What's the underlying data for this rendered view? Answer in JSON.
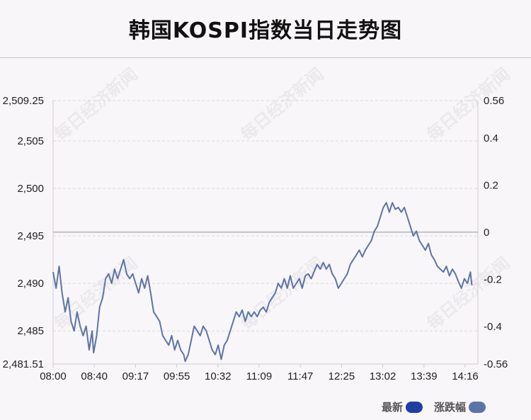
{
  "header": {
    "title": "韩国KOSPI指数当日走势图"
  },
  "watermark_text": "每日经济新闻",
  "legend": {
    "latest_label": "最新",
    "latest_color": "#1e3fa3",
    "change_label": "涨跌幅",
    "change_color": "#5b74a8"
  },
  "chart_data": {
    "type": "line",
    "title": "韩国KOSPI指数当日走势图",
    "x_tick_labels": [
      "08:00",
      "08:40",
      "09:17",
      "09:55",
      "10:32",
      "11:09",
      "11:47",
      "12:25",
      "13:02",
      "13:39",
      "14:16"
    ],
    "y_left_tick_labels": [
      "2,509.25",
      "2,505",
      "2,500",
      "2,495",
      "2,490",
      "2,485",
      "2,481.51"
    ],
    "y_left_tick_values": [
      2509.25,
      2505,
      2500,
      2495,
      2490,
      2485,
      2481.51
    ],
    "y_right_tick_labels": [
      "0.56",
      "0.4",
      "0.2",
      "0",
      "-0.2",
      "-0.4",
      "-0.56"
    ],
    "y_right_tick_values": [
      0.56,
      0.4,
      0.2,
      0,
      -0.2,
      -0.4,
      -0.56
    ],
    "ylim": [
      2481.51,
      2509.25
    ],
    "y2lim": [
      -0.56,
      0.56
    ],
    "baseline": 2495.4,
    "line_color": "#5b74a8",
    "grid": true,
    "series": [
      {
        "name": "最新",
        "points": [
          [
            0,
            2491.2
          ],
          [
            2,
            2489.5
          ],
          [
            4,
            2491.8
          ],
          [
            6,
            2489.0
          ],
          [
            8,
            2487.0
          ],
          [
            10,
            2488.5
          ],
          [
            12,
            2486.0
          ],
          [
            14,
            2485.0
          ],
          [
            16,
            2487.0
          ],
          [
            18,
            2485.5
          ],
          [
            20,
            2484.5
          ],
          [
            22,
            2485.5
          ],
          [
            24,
            2483.0
          ],
          [
            26,
            2485.0
          ],
          [
            27,
            2482.7
          ],
          [
            29,
            2484.5
          ],
          [
            31,
            2487.5
          ],
          [
            33,
            2488.5
          ],
          [
            35,
            2490.5
          ],
          [
            37,
            2491.0
          ],
          [
            39,
            2490.0
          ],
          [
            41,
            2491.5
          ],
          [
            43,
            2490.5
          ],
          [
            45,
            2491.5
          ],
          [
            47,
            2492.5
          ],
          [
            49,
            2491.0
          ],
          [
            51,
            2490.5
          ],
          [
            53,
            2491.0
          ],
          [
            55,
            2490.0
          ],
          [
            57,
            2489.0
          ],
          [
            59,
            2490.5
          ],
          [
            61,
            2489.5
          ],
          [
            63,
            2490.8
          ],
          [
            65,
            2489.0
          ],
          [
            67,
            2487.0
          ],
          [
            69,
            2486.5
          ],
          [
            71,
            2486.0
          ],
          [
            73,
            2484.5
          ],
          [
            75,
            2484.0
          ],
          [
            77,
            2483.5
          ],
          [
            79,
            2484.5
          ],
          [
            81,
            2483.0
          ],
          [
            83,
            2484.0
          ],
          [
            85,
            2483.0
          ],
          [
            87,
            2482.5
          ],
          [
            88,
            2481.8
          ],
          [
            90,
            2482.5
          ],
          [
            92,
            2484.0
          ],
          [
            94,
            2485.5
          ],
          [
            96,
            2485.0
          ],
          [
            98,
            2484.5
          ],
          [
            100,
            2485.5
          ],
          [
            102,
            2485.0
          ],
          [
            104,
            2484.0
          ],
          [
            106,
            2483.0
          ],
          [
            108,
            2482.5
          ],
          [
            110,
            2483.5
          ],
          [
            112,
            2482.0
          ],
          [
            114,
            2483.5
          ],
          [
            116,
            2484.0
          ],
          [
            118,
            2485.0
          ],
          [
            120,
            2486.0
          ],
          [
            122,
            2487.0
          ],
          [
            124,
            2486.5
          ],
          [
            126,
            2487.2
          ],
          [
            128,
            2486.0
          ],
          [
            130,
            2487.0
          ],
          [
            132,
            2486.5
          ],
          [
            134,
            2487.0
          ],
          [
            136,
            2486.5
          ],
          [
            138,
            2487.2
          ],
          [
            140,
            2487.5
          ],
          [
            142,
            2487.0
          ],
          [
            144,
            2488.0
          ],
          [
            146,
            2488.5
          ],
          [
            148,
            2489.0
          ],
          [
            150,
            2490.0
          ],
          [
            152,
            2489.5
          ],
          [
            154,
            2490.5
          ],
          [
            156,
            2489.5
          ],
          [
            158,
            2490.8
          ],
          [
            160,
            2489.5
          ],
          [
            162,
            2490.0
          ],
          [
            164,
            2490.5
          ],
          [
            166,
            2489.5
          ],
          [
            168,
            2490.8
          ],
          [
            170,
            2491.0
          ],
          [
            172,
            2490.5
          ],
          [
            174,
            2491.3
          ],
          [
            176,
            2492.0
          ],
          [
            178,
            2491.5
          ],
          [
            180,
            2492.2
          ],
          [
            182,
            2491.5
          ],
          [
            184,
            2492.0
          ],
          [
            186,
            2491.0
          ],
          [
            188,
            2490.5
          ],
          [
            190,
            2489.5
          ],
          [
            192,
            2490.0
          ],
          [
            194,
            2490.5
          ],
          [
            196,
            2491.0
          ],
          [
            198,
            2492.0
          ],
          [
            200,
            2492.5
          ],
          [
            202,
            2493.0
          ],
          [
            204,
            2493.5
          ],
          [
            206,
            2492.8
          ],
          [
            208,
            2493.5
          ],
          [
            210,
            2494.0
          ],
          [
            212,
            2494.5
          ],
          [
            214,
            2495.5
          ],
          [
            216,
            2496.0
          ],
          [
            218,
            2497.0
          ],
          [
            220,
            2498.0
          ],
          [
            222,
            2498.5
          ],
          [
            224,
            2497.5
          ],
          [
            226,
            2498.5
          ],
          [
            228,
            2497.8
          ],
          [
            230,
            2498.0
          ],
          [
            232,
            2497.5
          ],
          [
            234,
            2498.0
          ],
          [
            236,
            2497.0
          ],
          [
            238,
            2496.0
          ],
          [
            240,
            2495.0
          ],
          [
            242,
            2495.5
          ],
          [
            244,
            2494.5
          ],
          [
            246,
            2494.0
          ],
          [
            248,
            2493.5
          ],
          [
            250,
            2494.2
          ],
          [
            252,
            2493.0
          ],
          [
            254,
            2492.5
          ],
          [
            256,
            2491.8
          ],
          [
            258,
            2491.5
          ],
          [
            260,
            2491.2
          ],
          [
            262,
            2491.8
          ],
          [
            264,
            2490.8
          ],
          [
            266,
            2491.5
          ],
          [
            268,
            2491.0
          ],
          [
            270,
            2490.2
          ],
          [
            272,
            2489.5
          ],
          [
            274,
            2490.5
          ],
          [
            276,
            2490.0
          ],
          [
            278,
            2491.2
          ],
          [
            279,
            2489.8
          ]
        ]
      }
    ]
  }
}
